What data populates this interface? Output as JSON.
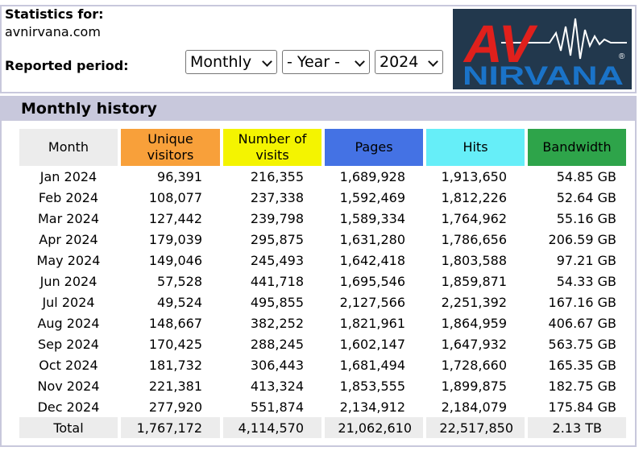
{
  "header": {
    "stats_label": "Statistics for:",
    "site": "avnirvana.com",
    "period_label": "Reported period:",
    "period_select": "Monthly",
    "year_select": "- Year -",
    "year_value": "2024"
  },
  "logo": {
    "text_top": "AV",
    "text_bottom": "NIRVANA",
    "mark": "®"
  },
  "history": {
    "title": "Monthly history",
    "columns": [
      "Month",
      "Unique visitors",
      "Number of visits",
      "Pages",
      "Hits",
      "Bandwidth"
    ],
    "rows": [
      {
        "month": "Jan 2024",
        "unique": "96,391",
        "visits": "216,355",
        "pages": "1,689,928",
        "hits": "1,913,650",
        "bandwidth": "54.85 GB"
      },
      {
        "month": "Feb 2024",
        "unique": "108,077",
        "visits": "237,338",
        "pages": "1,592,469",
        "hits": "1,812,226",
        "bandwidth": "52.64 GB"
      },
      {
        "month": "Mar 2024",
        "unique": "127,442",
        "visits": "239,798",
        "pages": "1,589,334",
        "hits": "1,764,962",
        "bandwidth": "55.16 GB"
      },
      {
        "month": "Apr 2024",
        "unique": "179,039",
        "visits": "295,875",
        "pages": "1,631,280",
        "hits": "1,786,656",
        "bandwidth": "206.59 GB"
      },
      {
        "month": "May 2024",
        "unique": "149,046",
        "visits": "245,493",
        "pages": "1,642,418",
        "hits": "1,803,588",
        "bandwidth": "97.21 GB"
      },
      {
        "month": "Jun 2024",
        "unique": "57,528",
        "visits": "441,718",
        "pages": "1,695,546",
        "hits": "1,859,871",
        "bandwidth": "54.33 GB"
      },
      {
        "month": "Jul 2024",
        "unique": "49,524",
        "visits": "495,855",
        "pages": "2,127,566",
        "hits": "2,251,392",
        "bandwidth": "167.16 GB"
      },
      {
        "month": "Aug 2024",
        "unique": "148,667",
        "visits": "382,252",
        "pages": "1,821,961",
        "hits": "1,864,959",
        "bandwidth": "406.67 GB"
      },
      {
        "month": "Sep 2024",
        "unique": "170,425",
        "visits": "288,245",
        "pages": "1,602,147",
        "hits": "1,647,932",
        "bandwidth": "563.75 GB"
      },
      {
        "month": "Oct 2024",
        "unique": "181,732",
        "visits": "306,443",
        "pages": "1,681,494",
        "hits": "1,728,660",
        "bandwidth": "165.35 GB"
      },
      {
        "month": "Nov 2024",
        "unique": "221,381",
        "visits": "413,324",
        "pages": "1,853,555",
        "hits": "1,899,875",
        "bandwidth": "182.75 GB"
      },
      {
        "month": "Dec 2024",
        "unique": "277,920",
        "visits": "551,874",
        "pages": "2,134,912",
        "hits": "2,184,079",
        "bandwidth": "175.84 GB"
      }
    ],
    "total": {
      "month": "Total",
      "unique": "1,767,172",
      "visits": "4,114,570",
      "pages": "21,062,610",
      "hits": "22,517,850",
      "bandwidth": "2.13 TB"
    }
  },
  "colors": {
    "frame": "#c8c8dc",
    "unique": "#f8a03a",
    "visits": "#f4f400",
    "pages": "#4472e4",
    "hits": "#66eef8",
    "bandwidth": "#2ea44a",
    "logo_bg": "#22384d",
    "logo_red": "#e0201c",
    "logo_blue": "#1a73c8"
  }
}
